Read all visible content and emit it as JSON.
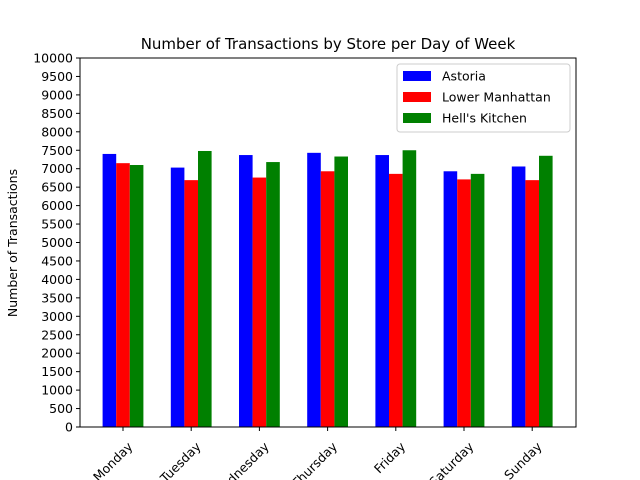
{
  "chart_data": {
    "type": "bar",
    "title": "Number of Transactions by Store per Day of Week",
    "xlabel": "",
    "ylabel": "Number of Transactions",
    "categories": [
      "Monday",
      "Tuesday",
      "Wednesday",
      "Thursday",
      "Friday",
      "Saturday",
      "Sunday"
    ],
    "series": [
      {
        "name": "Astoria",
        "color": "#0000ff",
        "values": [
          7400,
          7030,
          7370,
          7430,
          7370,
          6930,
          7060
        ]
      },
      {
        "name": "Lower Manhattan",
        "color": "#ff0000",
        "values": [
          7150,
          6690,
          6760,
          6930,
          6860,
          6710,
          6690
        ]
      },
      {
        "name": "Hell's Kitchen",
        "color": "#008000",
        "values": [
          7100,
          7480,
          7180,
          7330,
          7500,
          6860,
          7350
        ]
      }
    ],
    "ylim": [
      0,
      10000
    ],
    "yticks": [
      0,
      500,
      1000,
      1500,
      2000,
      2500,
      3000,
      3500,
      4000,
      4500,
      5000,
      5500,
      6000,
      6500,
      7000,
      7500,
      8000,
      8500,
      9000,
      9500,
      10000
    ],
    "grid": false,
    "legend_position": "top-right"
  }
}
